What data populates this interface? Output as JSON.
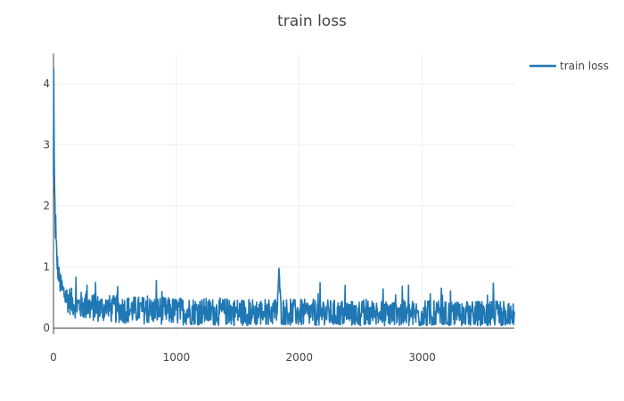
{
  "chart_data": {
    "type": "line",
    "title": "train loss",
    "xlabel": "",
    "ylabel": "",
    "xlim": [
      0,
      3750
    ],
    "ylim": [
      -0.1,
      4.5
    ],
    "x_ticks": [
      0,
      1000,
      2000,
      3000
    ],
    "y_ticks": [
      0,
      1,
      2,
      3,
      4
    ],
    "grid": true,
    "legend_position": "top-right",
    "series": [
      {
        "name": "train loss",
        "color": "#1f77b4",
        "x": [
          0,
          2,
          4,
          6,
          8,
          10,
          12,
          15,
          18,
          21,
          25,
          30,
          35,
          40,
          45,
          50,
          55,
          60,
          70,
          80,
          90,
          100,
          110,
          120,
          130,
          140,
          150,
          170,
          190,
          210,
          230,
          250,
          280,
          300,
          330,
          360,
          400,
          450,
          500,
          560,
          620,
          700,
          780,
          860,
          950,
          1050,
          1150,
          1250,
          1350,
          1450,
          1550,
          1650,
          1750,
          1820,
          1835,
          1850,
          1950,
          2050,
          2150,
          2250,
          2350,
          2450,
          2550,
          2650,
          2750,
          2850,
          2950,
          3050,
          3150,
          3250,
          3350,
          3450,
          3550,
          3600,
          3650,
          3700,
          3750
        ],
        "y": [
          2.5,
          4.25,
          3.5,
          2.8,
          2.2,
          1.9,
          2.0,
          1.6,
          1.8,
          1.4,
          1.3,
          1.1,
          1.0,
          0.9,
          0.85,
          0.8,
          0.75,
          0.7,
          0.65,
          0.6,
          0.58,
          0.55,
          0.5,
          0.5,
          0.48,
          0.46,
          0.45,
          0.42,
          0.4,
          0.4,
          0.39,
          0.38,
          0.37,
          0.36,
          0.36,
          0.35,
          0.35,
          0.34,
          0.33,
          0.33,
          0.32,
          0.32,
          0.31,
          0.31,
          0.3,
          0.3,
          0.3,
          0.29,
          0.29,
          0.29,
          0.28,
          0.28,
          0.28,
          0.3,
          0.98,
          0.3,
          0.27,
          0.27,
          0.27,
          0.26,
          0.26,
          0.26,
          0.26,
          0.25,
          0.25,
          0.25,
          0.25,
          0.25,
          0.24,
          0.24,
          0.24,
          0.24,
          0.24,
          0.24,
          0.24,
          0.24,
          0.24
        ],
        "noise_amplitude": [
          0,
          0,
          0,
          0,
          0.25,
          0.25,
          0.25,
          0.25,
          0.25,
          0.25,
          0.3,
          0.3,
          0.3,
          0.3,
          0.3,
          0.3,
          0.3,
          0.3,
          0.35,
          0.35,
          0.35,
          0.35,
          0.35,
          0.35,
          0.35,
          0.35,
          0.35,
          0.35,
          0.35,
          0.35,
          0.35,
          0.35,
          0.35,
          0.35,
          0.35,
          0.35,
          0.35,
          0.35,
          0.35,
          0.35,
          0.35,
          0.35,
          0.35,
          0.35,
          0.35,
          0.35,
          0.35,
          0.35,
          0.35,
          0.35,
          0.35,
          0.35,
          0.35,
          0.35,
          0,
          0.35,
          0.35,
          0.35,
          0.35,
          0.35,
          0.35,
          0.35,
          0.35,
          0.35,
          0.35,
          0.35,
          0.35,
          0.35,
          0.35,
          0.35,
          0.35,
          0.35,
          0.35,
          0.35,
          0.35,
          0.35,
          0.35
        ]
      }
    ]
  }
}
